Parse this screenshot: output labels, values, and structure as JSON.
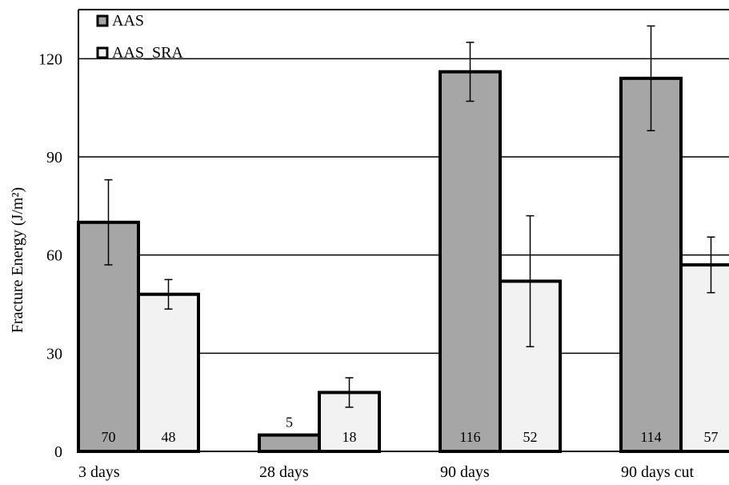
{
  "chart_data": {
    "type": "bar",
    "title": "",
    "xlabel": "",
    "ylabel": "Fracture Energy (J/m²)",
    "ylim": [
      0,
      135
    ],
    "yticks": [
      0,
      30,
      60,
      90,
      120
    ],
    "grid": true,
    "legend_position": "top-left",
    "categories": [
      "3 days",
      "28 days",
      "90 days",
      "90 days cut"
    ],
    "series": [
      {
        "name": "AAS",
        "color": "#a6a6a6",
        "values": [
          70,
          5,
          116,
          114
        ],
        "errors": [
          13,
          0,
          9,
          16
        ],
        "data_labels": [
          "70",
          "5",
          "116",
          "114"
        ]
      },
      {
        "name": "AAS_SRA",
        "color": "#f2f2f2",
        "values": [
          48,
          18,
          52,
          57
        ],
        "errors": [
          4.5,
          4.5,
          20,
          8.5
        ],
        "data_labels": [
          "48",
          "18",
          "52",
          "57"
        ]
      }
    ]
  }
}
